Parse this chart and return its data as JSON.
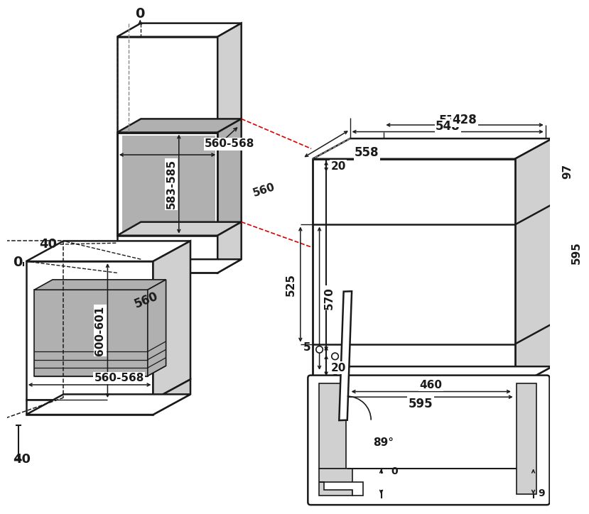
{
  "bg": "#ffffff",
  "lc": "#1a1a1a",
  "rc": "#dd0000",
  "gf": "#b0b0b0",
  "lgf": "#d0d0d0",
  "wf": "#ffffff",
  "labels": {
    "top0": "0",
    "mid40": "40",
    "left0": "0",
    "bot40": "40",
    "ush": "583-585",
    "usw": "560-568",
    "usd": "560",
    "lsh": "600-601",
    "lsw": "560-568",
    "lsd": "560",
    "d570": "570",
    "d548": "548",
    "d428": "428",
    "d558": "558",
    "d20t": "20",
    "d97": "97",
    "d595v": "595",
    "d525": "525",
    "d570v": "570",
    "d5": "5",
    "d20b": "20",
    "d595h": "595",
    "d460": "460",
    "d89": "89°",
    "d0": "0",
    "d9": "9"
  }
}
